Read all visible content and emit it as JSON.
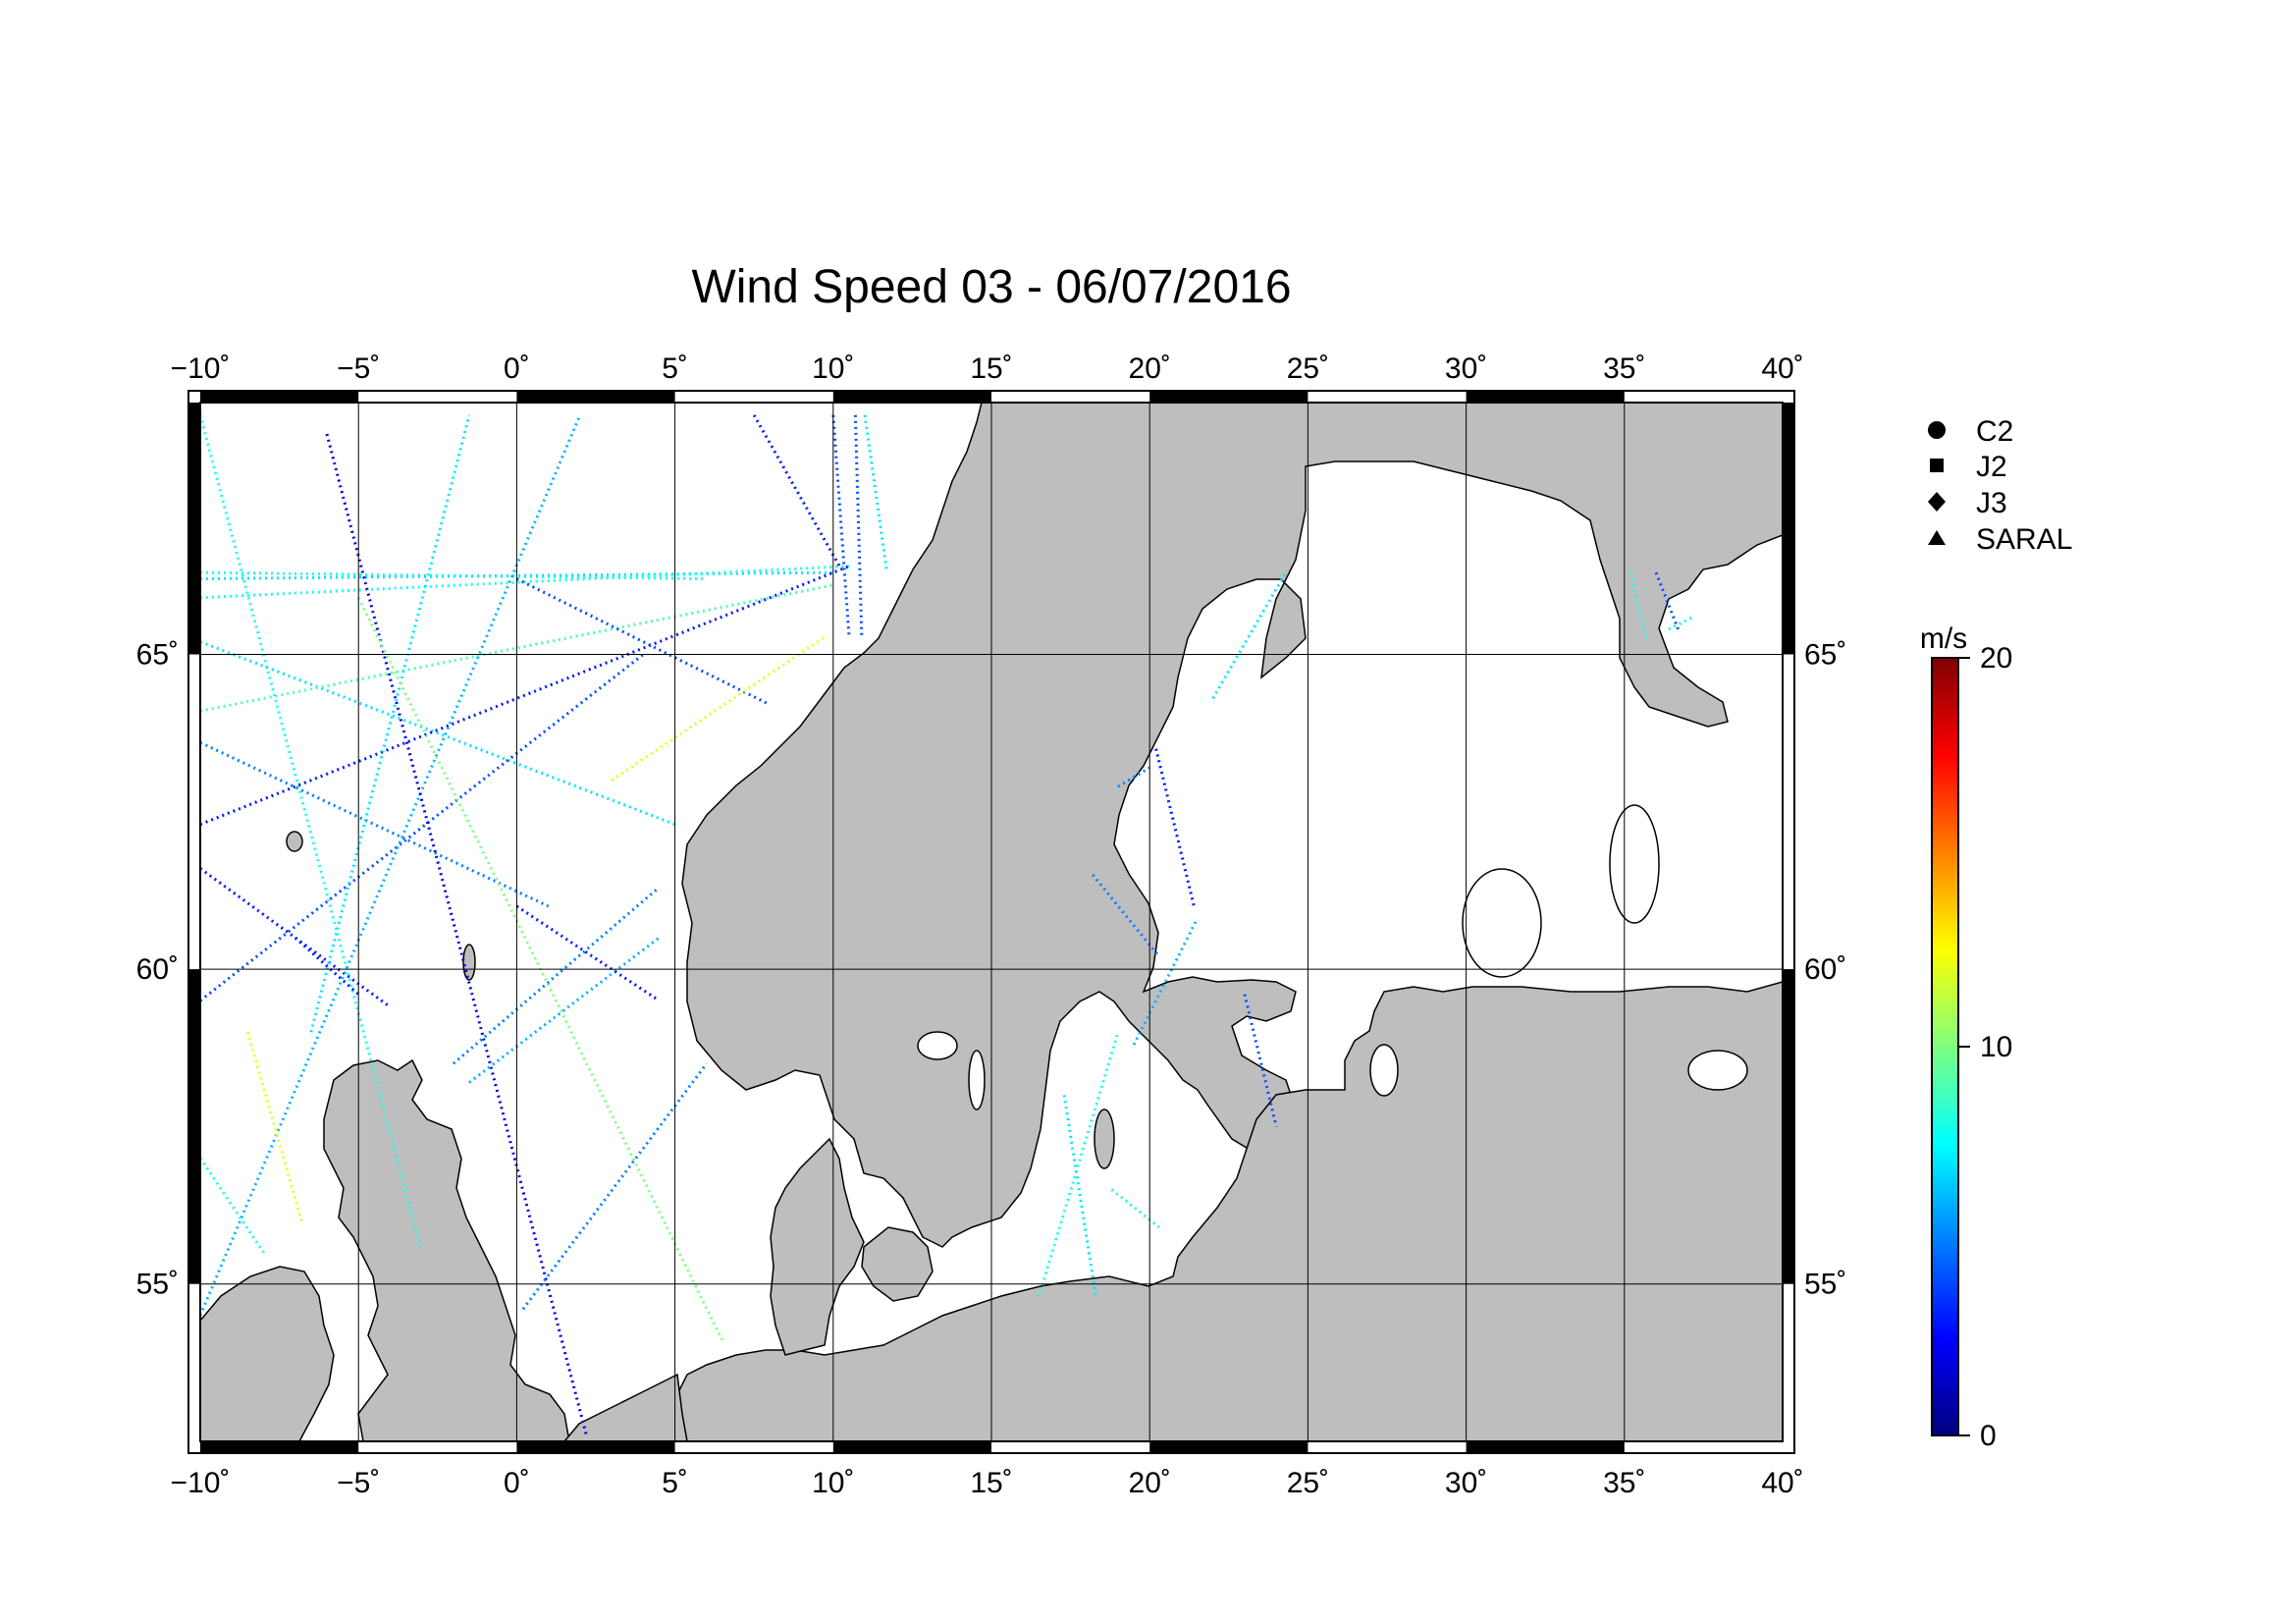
{
  "title": "Wind Speed 03 - 06/07/2016",
  "map": {
    "lon_range": [
      -10,
      40
    ],
    "lat_range": [
      52.5,
      69
    ],
    "lon_ticks": [
      {
        "value": -10,
        "label": "−10˚"
      },
      {
        "value": -5,
        "label": "−5˚"
      },
      {
        "value": 0,
        "label": "0˚"
      },
      {
        "value": 5,
        "label": "5˚"
      },
      {
        "value": 10,
        "label": "10˚"
      },
      {
        "value": 15,
        "label": "15˚"
      },
      {
        "value": 20,
        "label": "20˚"
      },
      {
        "value": 25,
        "label": "25˚"
      },
      {
        "value": 30,
        "label": "30˚"
      },
      {
        "value": 35,
        "label": "35˚"
      },
      {
        "value": 40,
        "label": "40˚"
      }
    ],
    "lat_ticks": [
      {
        "value": 55,
        "label": "55˚"
      },
      {
        "value": 60,
        "label": "60˚"
      },
      {
        "value": 65,
        "label": "65˚"
      }
    ],
    "land_color": "#bebebe",
    "sea_color": "#ffffff",
    "grid": true
  },
  "legend": {
    "items": [
      {
        "symbol": "circle",
        "label": "C2"
      },
      {
        "symbol": "square",
        "label": "J2"
      },
      {
        "symbol": "diamond",
        "label": "J3"
      },
      {
        "symbol": "triangle",
        "label": "SARAL"
      }
    ]
  },
  "colorbar": {
    "unit": "m/s",
    "min": 0,
    "max": 20,
    "ticks": [
      {
        "value": 0,
        "label": "0"
      },
      {
        "value": 10,
        "label": "10"
      },
      {
        "value": 20,
        "label": "20"
      }
    ],
    "colormap": [
      "#00007f",
      "#0000ff",
      "#007fff",
      "#00ffff",
      "#7fff7f",
      "#ffff00",
      "#ff7f00",
      "#ff0000",
      "#7f0000"
    ]
  },
  "chart_data": {
    "type": "scatter",
    "title": "Wind Speed 03 - 06/07/2016",
    "value_unit": "m/s",
    "value_range": [
      0,
      20
    ],
    "tracks": [
      {
        "from": [
          -10,
          68.8
        ],
        "to": [
          -3,
          55.5
        ],
        "speed": 8
      },
      {
        "from": [
          -10,
          66.3
        ],
        "to": [
          6,
          66.2
        ],
        "speed": 8
      },
      {
        "from": [
          -10,
          66.2
        ],
        "to": [
          10,
          66.3
        ],
        "speed": 7
      },
      {
        "from": [
          -10,
          65.9
        ],
        "to": [
          10.5,
          66.4
        ],
        "speed": 8
      },
      {
        "from": [
          -10,
          65.2
        ],
        "to": [
          5,
          62.3
        ],
        "speed": 7
      },
      {
        "from": [
          -10,
          64.1
        ],
        "to": [
          10,
          66.1
        ],
        "speed": 9
      },
      {
        "from": [
          -10,
          63.6
        ],
        "to": [
          1,
          61.0
        ],
        "speed": 5
      },
      {
        "from": [
          -10,
          62.3
        ],
        "to": [
          10.5,
          66.4
        ],
        "speed": 3
      },
      {
        "from": [
          -10,
          61.6
        ],
        "to": [
          -4.0,
          59.4
        ],
        "speed": 3
      },
      {
        "from": [
          -10,
          59.5
        ],
        "to": [
          4.0,
          65.0
        ],
        "speed": 4
      },
      {
        "from": [
          -10,
          57.0
        ],
        "to": [
          -8,
          55.5
        ],
        "speed": 8
      },
      {
        "from": [
          -10,
          54.5
        ],
        "to": [
          2.0,
          68.8
        ],
        "speed": 6
      },
      {
        "from": [
          -8.5,
          59.0
        ],
        "to": [
          -6.8,
          56.0
        ],
        "speed": 12
      },
      {
        "from": [
          -6.5,
          59.0
        ],
        "to": [
          -1.5,
          68.8
        ],
        "speed": 7
      },
      {
        "from": [
          -6,
          68.5
        ],
        "to": [
          2.2,
          52.6
        ],
        "speed": 2
      },
      {
        "from": [
          -5.0,
          65.9
        ],
        "to": [
          6.5,
          54.1
        ],
        "speed": 10
      },
      {
        "from": [
          -7,
          60.5
        ],
        "to": [
          -5.0,
          59.6
        ],
        "speed": 3
      },
      {
        "from": [
          -2,
          58.5
        ],
        "to": [
          4.5,
          61.3
        ],
        "speed": 5
      },
      {
        "from": [
          0.2,
          54.6
        ],
        "to": [
          6.0,
          58.5
        ],
        "speed": 5
      },
      {
        "from": [
          -1.5,
          58.2
        ],
        "to": [
          4.5,
          60.5
        ],
        "speed": 6
      },
      {
        "from": [
          0,
          61.0
        ],
        "to": [
          4.5,
          59.5
        ],
        "speed": 3
      },
      {
        "from": [
          0,
          66.2
        ],
        "to": [
          8,
          64.2
        ],
        "speed": 4
      },
      {
        "from": [
          3.0,
          63.0
        ],
        "to": [
          9.8,
          65.3
        ],
        "speed": 12
      },
      {
        "from": [
          7.5,
          68.8
        ],
        "to": [
          10.2,
          66.4
        ],
        "speed": 3
      },
      {
        "from": [
          10.0,
          68.8
        ],
        "to": [
          10.5,
          65.3
        ],
        "speed": 4
      },
      {
        "from": [
          10.7,
          68.8
        ],
        "to": [
          10.9,
          65.3
        ],
        "speed": 4
      },
      {
        "from": [
          11.0,
          68.8
        ],
        "to": [
          11.7,
          66.3
        ],
        "speed": 7
      },
      {
        "from": [
          20.2,
          63.5
        ],
        "to": [
          21.4,
          61.0
        ],
        "speed": 3
      },
      {
        "from": [
          18.2,
          61.5
        ],
        "to": [
          20.3,
          60.2
        ],
        "speed": 5
      },
      {
        "from": [
          19.5,
          58.8
        ],
        "to": [
          21.5,
          60.8
        ],
        "speed": 6
      },
      {
        "from": [
          16.5,
          54.8
        ],
        "to": [
          19.0,
          59.0
        ],
        "speed": 8
      },
      {
        "from": [
          17.3,
          58.0
        ],
        "to": [
          18.3,
          54.8
        ],
        "speed": 7
      },
      {
        "from": [
          18.8,
          56.5
        ],
        "to": [
          20.3,
          55.9
        ],
        "speed": 8
      },
      {
        "from": [
          22.0,
          64.3
        ],
        "to": [
          24.3,
          66.3
        ],
        "speed": 7
      },
      {
        "from": [
          23.0,
          59.6
        ],
        "to": [
          24.0,
          57.5
        ],
        "speed": 4
      },
      {
        "from": [
          19.0,
          62.9
        ],
        "to": [
          20.0,
          63.2
        ],
        "speed": 5
      },
      {
        "from": [
          35.2,
          66.3
        ],
        "to": [
          35.7,
          65.2
        ],
        "speed": 8
      },
      {
        "from": [
          36.0,
          66.3
        ],
        "to": [
          36.7,
          65.4
        ],
        "speed": 4
      },
      {
        "from": [
          36.4,
          65.4
        ],
        "to": [
          37.2,
          65.6
        ],
        "speed": 8
      }
    ]
  }
}
